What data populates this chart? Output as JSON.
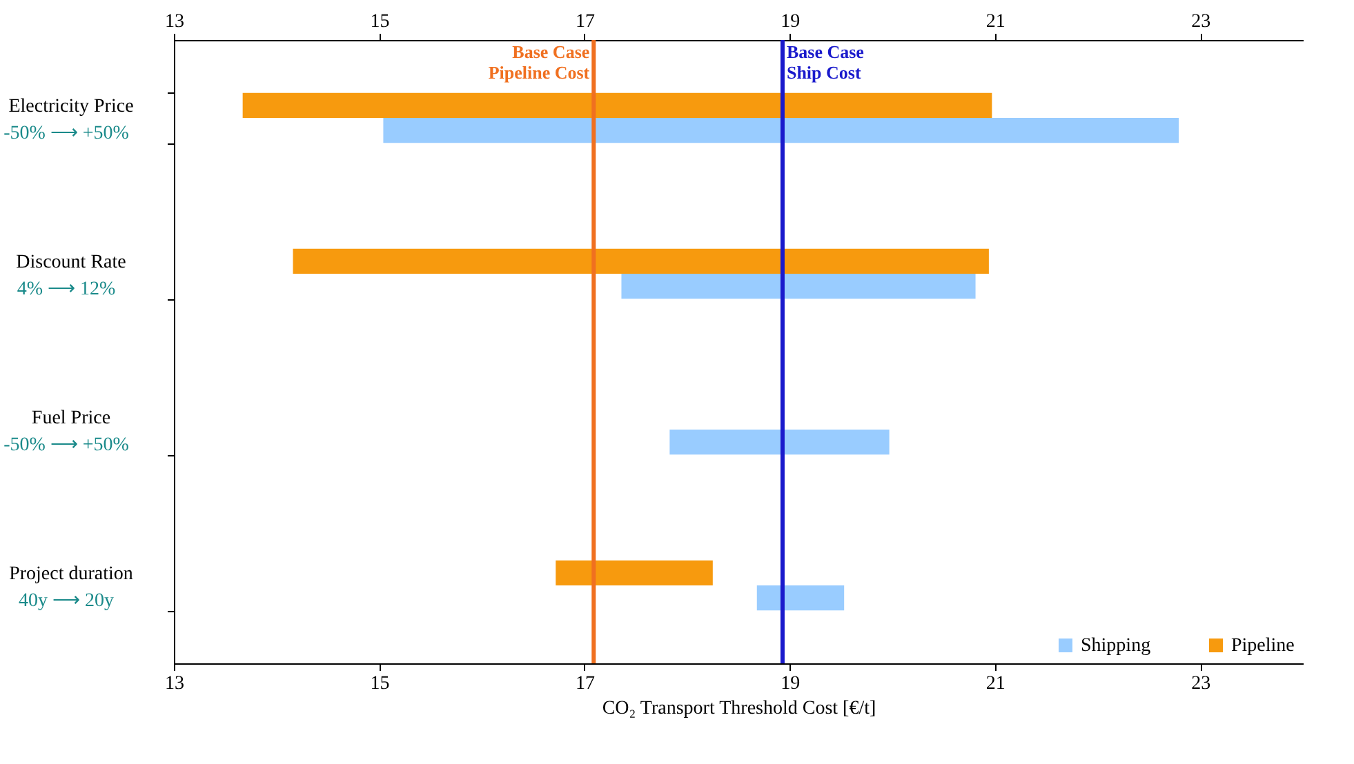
{
  "chart_data": {
    "type": "bar",
    "orientation": "horizontal",
    "categories": [
      "Electricity Price",
      "Discount Rate",
      "Fuel Price",
      "Project duration"
    ],
    "annotations": [
      "-50% ⟶ +50%",
      "4% ⟶ 12%",
      "-50% ⟶ +50%",
      "40y ⟶ 20y"
    ],
    "series": [
      {
        "name": "Shipping",
        "color": "#99ccff",
        "base": [
          15.04,
          17.36,
          17.83,
          18.68
        ],
        "values": [
          7.75,
          3.45,
          2.14,
          0.85
        ]
      },
      {
        "name": "Pipeline",
        "color": "#f79a0e",
        "base": [
          13.67,
          14.16,
          null,
          16.72
        ],
        "values": [
          7.3,
          6.78,
          null,
          1.53
        ]
      }
    ],
    "xlabel": "CO₂ Transport Threshold Cost [€/t]",
    "xlim": [
      13,
      24
    ],
    "xticks": [
      13,
      15,
      17,
      19,
      21,
      23
    ],
    "x2lim": [
      13,
      24
    ],
    "x2ticks": [
      13,
      15,
      17,
      19,
      21,
      23
    ],
    "ref_lines": [
      {
        "axis": "x",
        "value": 17.09,
        "label": "Base Case\nPipeline Cost",
        "color": "#f07020"
      },
      {
        "axis": "x",
        "value": 18.93,
        "label": "Base Case\nShip Cost",
        "color": "#1a1acc"
      }
    ],
    "legend": "bottom right",
    "grid": false
  }
}
